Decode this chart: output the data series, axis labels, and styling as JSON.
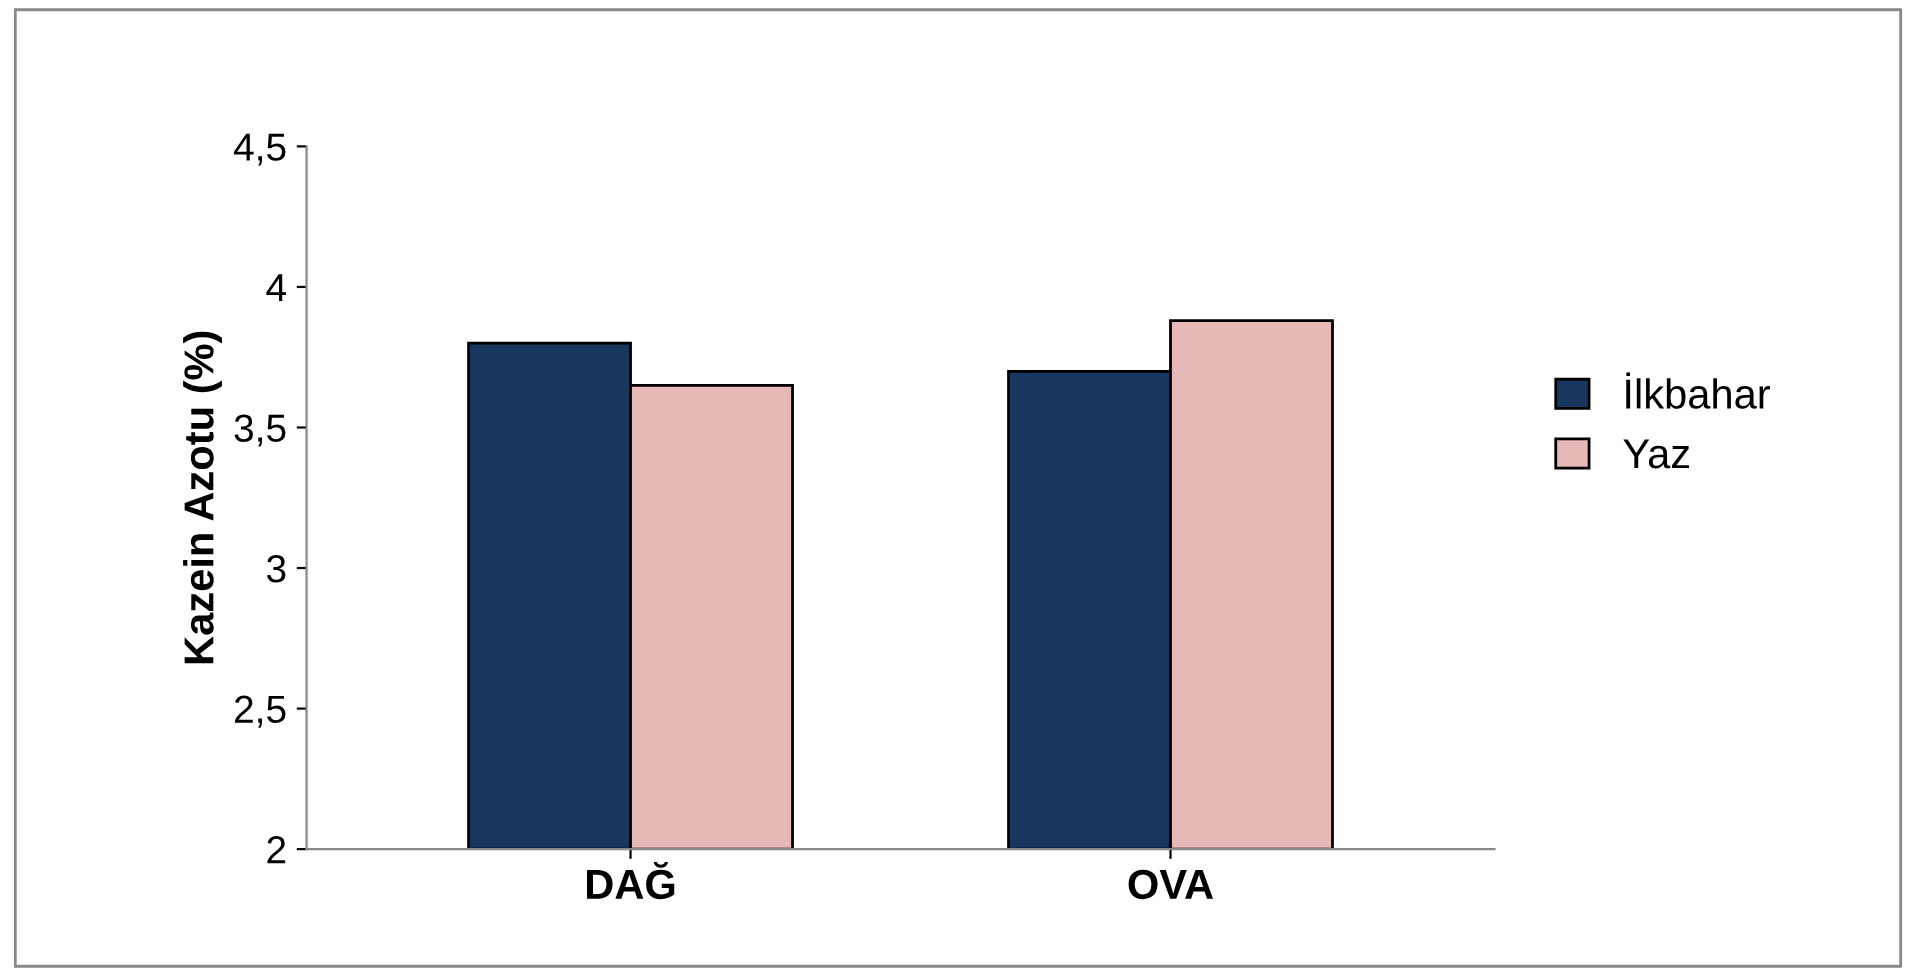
{
  "chart_data": {
    "type": "bar",
    "ylabel": "Kazein Azotu (%)",
    "categories": [
      "DAĞ",
      "OVA"
    ],
    "series": [
      {
        "name": "İlkbahar",
        "color": "#17375e",
        "values": [
          3.8,
          3.7
        ]
      },
      {
        "name": "Yaz",
        "color": "#e6b9b8",
        "values": [
          3.65,
          3.88
        ]
      }
    ],
    "ylim": [
      2,
      4.5
    ],
    "yticks": [
      {
        "value": 2,
        "label": "2"
      },
      {
        "value": 2.5,
        "label": "2,5"
      },
      {
        "value": 3,
        "label": "3"
      },
      {
        "value": 3.5,
        "label": "3,5"
      },
      {
        "value": 4,
        "label": "4"
      },
      {
        "value": 4.5,
        "label": "4,5"
      }
    ],
    "grid": false,
    "legend": "right"
  }
}
